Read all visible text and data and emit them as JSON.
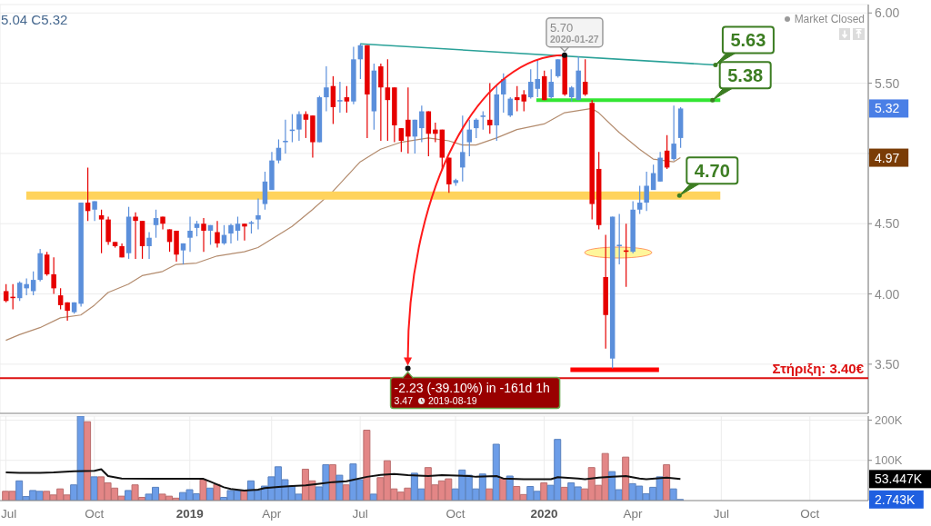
{
  "chart_data": [
    {
      "type": "candlestick",
      "x": [
        "2018-07-02",
        "2018-07-09",
        "2018-07-16",
        "2018-07-23",
        "2018-07-30",
        "2018-08-06",
        "2018-08-13",
        "2018-08-20",
        "2018-08-27",
        "2018-09-03",
        "2018-09-10",
        "2018-09-17",
        "2018-09-24",
        "2018-10-01",
        "2018-10-08",
        "2018-10-15",
        "2018-10-22",
        "2018-10-29",
        "2018-11-05",
        "2018-11-12",
        "2018-11-19",
        "2018-11-26",
        "2018-12-03",
        "2018-12-10",
        "2018-12-17",
        "2018-12-24",
        "2018-12-31",
        "2019-01-07",
        "2019-01-14",
        "2019-01-21",
        "2019-01-28",
        "2019-02-04",
        "2019-02-11",
        "2019-02-18",
        "2019-02-25",
        "2019-03-04",
        "2019-03-11",
        "2019-03-18",
        "2019-03-25",
        "2019-04-01",
        "2019-04-08",
        "2019-04-15",
        "2019-04-22",
        "2019-04-29",
        "2019-05-06",
        "2019-05-13",
        "2019-05-20",
        "2019-05-27",
        "2019-06-03",
        "2019-06-10",
        "2019-06-17",
        "2019-06-24",
        "2019-07-01",
        "2019-07-08",
        "2019-07-15",
        "2019-07-22",
        "2019-07-29",
        "2019-08-05",
        "2019-08-12",
        "2019-08-19",
        "2019-08-26",
        "2019-09-02",
        "2019-09-09",
        "2019-09-16",
        "2019-09-23",
        "2019-09-30",
        "2019-10-07",
        "2019-10-14",
        "2019-10-21",
        "2019-10-28",
        "2019-11-04",
        "2019-11-11",
        "2019-11-18",
        "2019-11-25",
        "2019-12-02",
        "2019-12-09",
        "2019-12-16",
        "2019-12-23",
        "2019-12-30",
        "2020-01-06",
        "2020-01-13",
        "2020-01-20",
        "2020-01-27",
        "2020-02-03",
        "2020-02-10",
        "2020-02-17",
        "2020-02-24",
        "2020-03-02",
        "2020-03-09",
        "2020-03-16",
        "2020-03-23",
        "2020-03-30",
        "2020-04-06",
        "2020-04-13",
        "2020-04-20",
        "2020-04-27",
        "2020-05-04",
        "2020-05-11",
        "2020-05-18",
        "2020-05-25"
      ],
      "ohlc": [
        [
          4.02,
          4.07,
          3.94,
          3.95
        ],
        [
          3.98,
          4.07,
          3.89,
          3.97
        ],
        [
          3.97,
          4.09,
          3.95,
          4.08
        ],
        [
          4.04,
          4.11,
          3.99,
          4.07
        ],
        [
          4.02,
          4.16,
          3.99,
          4.1
        ],
        [
          4.1,
          4.32,
          4.09,
          4.29
        ],
        [
          4.28,
          4.3,
          4.13,
          4.14
        ],
        [
          4.14,
          4.26,
          4.0,
          4.04
        ],
        [
          3.99,
          4.04,
          3.89,
          3.92
        ],
        [
          3.94,
          3.94,
          3.81,
          3.88
        ],
        [
          3.87,
          3.94,
          3.86,
          3.94
        ],
        [
          3.93,
          4.65,
          3.91,
          4.65
        ],
        [
          4.65,
          4.9,
          4.52,
          4.59
        ],
        [
          4.6,
          4.66,
          4.52,
          4.66
        ],
        [
          4.56,
          4.6,
          4.29,
          4.53
        ],
        [
          4.53,
          4.55,
          4.35,
          4.37
        ],
        [
          4.37,
          4.37,
          4.33,
          4.34
        ],
        [
          4.34,
          4.36,
          4.26,
          4.26
        ],
        [
          4.29,
          4.62,
          4.25,
          4.55
        ],
        [
          4.55,
          4.58,
          4.25,
          4.52
        ],
        [
          4.52,
          4.52,
          4.25,
          4.34
        ],
        [
          4.34,
          4.44,
          4.25,
          4.4
        ],
        [
          4.49,
          4.6,
          4.4,
          4.54
        ],
        [
          4.55,
          4.55,
          4.46,
          4.5
        ],
        [
          4.46,
          4.46,
          4.3,
          4.37
        ],
        [
          4.45,
          4.45,
          4.23,
          4.28
        ],
        [
          4.31,
          4.36,
          4.21,
          4.36
        ],
        [
          4.4,
          4.55,
          4.3,
          4.45
        ],
        [
          4.47,
          4.52,
          4.41,
          4.5
        ],
        [
          4.5,
          4.54,
          4.3,
          4.45
        ],
        [
          4.45,
          4.49,
          4.35,
          4.49
        ],
        [
          4.44,
          4.52,
          4.33,
          4.36
        ],
        [
          4.36,
          4.49,
          4.35,
          4.42
        ],
        [
          4.43,
          4.5,
          4.36,
          4.49
        ],
        [
          4.45,
          4.55,
          4.38,
          4.5
        ],
        [
          4.5,
          4.5,
          4.38,
          4.48
        ],
        [
          4.5,
          4.52,
          4.43,
          4.51
        ],
        [
          4.53,
          4.68,
          4.46,
          4.56
        ],
        [
          4.64,
          4.87,
          4.6,
          4.8
        ],
        [
          4.74,
          5.01,
          4.74,
          4.95
        ],
        [
          4.95,
          5.1,
          4.93,
          5.04
        ],
        [
          5.08,
          5.24,
          5.0,
          5.09
        ],
        [
          5.16,
          5.28,
          5.08,
          5.17
        ],
        [
          5.17,
          5.3,
          5.09,
          5.28
        ],
        [
          5.28,
          5.3,
          5.11,
          5.24
        ],
        [
          5.27,
          5.27,
          4.97,
          5.08
        ],
        [
          5.08,
          5.41,
          5.08,
          5.4
        ],
        [
          5.4,
          5.62,
          5.3,
          5.47
        ],
        [
          5.48,
          5.55,
          5.21,
          5.33
        ],
        [
          5.37,
          5.51,
          5.29,
          5.38
        ],
        [
          5.4,
          5.48,
          5.29,
          5.37
        ],
        [
          5.37,
          5.76,
          5.35,
          5.67
        ],
        [
          5.67,
          5.78,
          5.53,
          5.77
        ],
        [
          5.77,
          5.77,
          5.11,
          5.42
        ],
        [
          5.3,
          5.64,
          5.17,
          5.59
        ],
        [
          5.62,
          5.64,
          5.09,
          5.47
        ],
        [
          5.47,
          5.67,
          5.09,
          5.38
        ],
        [
          5.47,
          5.47,
          5.08,
          5.2
        ],
        [
          5.18,
          5.18,
          5.01,
          5.09
        ],
        [
          5.24,
          5.47,
          5.0,
          5.12
        ],
        [
          5.12,
          5.24,
          5.0,
          5.24
        ],
        [
          5.18,
          5.34,
          5.08,
          5.3
        ],
        [
          5.3,
          5.3,
          4.98,
          5.14
        ],
        [
          5.17,
          5.22,
          5.08,
          5.14
        ],
        [
          5.17,
          5.17,
          4.88,
          4.97
        ],
        [
          4.97,
          4.97,
          4.72,
          4.78
        ],
        [
          4.79,
          4.82,
          4.77,
          4.81
        ],
        [
          4.9,
          5.27,
          4.8,
          5.01
        ],
        [
          5.08,
          5.24,
          4.98,
          5.17
        ],
        [
          5.18,
          5.25,
          5.11,
          5.24
        ],
        [
          5.26,
          5.3,
          5.17,
          5.27
        ],
        [
          5.24,
          5.5,
          5.14,
          5.2
        ],
        [
          5.2,
          5.48,
          5.09,
          5.42
        ],
        [
          5.42,
          5.57,
          5.29,
          5.53
        ],
        [
          5.27,
          5.4,
          5.26,
          5.39
        ],
        [
          5.4,
          5.48,
          5.3,
          5.38
        ],
        [
          5.42,
          5.45,
          5.3,
          5.37
        ],
        [
          5.4,
          5.6,
          5.39,
          5.51
        ],
        [
          5.46,
          5.67,
          5.4,
          5.53
        ],
        [
          5.55,
          5.59,
          5.38,
          5.38
        ],
        [
          5.4,
          5.6,
          5.39,
          5.51
        ],
        [
          5.55,
          5.67,
          5.54,
          5.67
        ],
        [
          5.7,
          5.7,
          5.41,
          5.42
        ],
        [
          5.4,
          5.48,
          5.37,
          5.47
        ],
        [
          5.38,
          5.69,
          5.38,
          5.59
        ],
        [
          5.51,
          5.67,
          5.41,
          5.42
        ],
        [
          5.36,
          5.38,
          4.53,
          4.64
        ],
        [
          4.89,
          5.01,
          4.46,
          4.49
        ],
        [
          4.12,
          4.42,
          3.61,
          3.85
        ],
        [
          3.54,
          4.55,
          3.47,
          4.55
        ],
        [
          4.34,
          4.57,
          4.21,
          4.35
        ],
        [
          4.31,
          4.5,
          4.05,
          4.3
        ],
        [
          4.3,
          4.66,
          4.29,
          4.6
        ],
        [
          4.6,
          4.77,
          4.57,
          4.65
        ],
        [
          4.65,
          4.87,
          4.59,
          4.77
        ],
        [
          4.74,
          4.92,
          4.74,
          4.86
        ],
        [
          4.8,
          5.01,
          4.8,
          4.97
        ],
        [
          5.02,
          5.13,
          4.89,
          4.9
        ],
        [
          4.96,
          5.34,
          4.95,
          5.07
        ],
        [
          5.11,
          5.33,
          5.04,
          5.32
        ]
      ],
      "colors": [
        "#e60000",
        "#e60000",
        "#5b8fdb",
        "#5b8fdb",
        "#5b8fdb",
        "#5b8fdb",
        "#e60000",
        "#e60000",
        "#e60000",
        "#e60000",
        "#5b8fdb",
        "#5b8fdb",
        "#e60000",
        "#5b8fdb",
        "#e60000",
        "#e60000",
        "#e60000",
        "#e60000",
        "#5b8fdb",
        "#e60000",
        "#e60000",
        "#5b8fdb",
        "#5b8fdb",
        "#e60000",
        "#e60000",
        "#e60000",
        "#5b8fdb",
        "#5b8fdb",
        "#5b8fdb",
        "#e60000",
        "#5b8fdb",
        "#e60000",
        "#5b8fdb",
        "#5b8fdb",
        "#5b8fdb",
        "#e60000",
        "#5b8fdb",
        "#5b8fdb",
        "#5b8fdb",
        "#5b8fdb",
        "#5b8fdb",
        "#5b8fdb",
        "#5b8fdb",
        "#5b8fdb",
        "#e60000",
        "#e60000",
        "#5b8fdb",
        "#5b8fdb",
        "#e60000",
        "#5b8fdb",
        "#e60000",
        "#5b8fdb",
        "#5b8fdb",
        "#e60000",
        "#5b8fdb",
        "#e60000",
        "#e60000",
        "#e60000",
        "#e60000",
        "#e60000",
        "#5b8fdb",
        "#5b8fdb",
        "#e60000",
        "#e60000",
        "#e60000",
        "#e60000",
        "#5b8fdb",
        "#5b8fdb",
        "#5b8fdb",
        "#5b8fdb",
        "#5b8fdb",
        "#e60000",
        "#5b8fdb",
        "#5b8fdb",
        "#5b8fdb",
        "#e60000",
        "#e60000",
        "#5b8fdb",
        "#5b8fdb",
        "#e60000",
        "#5b8fdb",
        "#5b8fdb",
        "#e60000",
        "#5b8fdb",
        "#5b8fdb",
        "#e60000",
        "#e60000",
        "#e60000",
        "#e60000",
        "#5b8fdb",
        "#5b8fdb",
        "#e60000",
        "#5b8fdb",
        "#5b8fdb",
        "#5b8fdb",
        "#5b8fdb",
        "#5b8fdb",
        "#e60000",
        "#5b8fdb",
        "#5b8fdb"
      ],
      "series": [
        {
          "type": "line",
          "x": [
            "2018-07-02",
            "2018-07-16",
            "2018-08-06",
            "2018-08-27",
            "2018-09-17",
            "2018-10-01",
            "2018-10-15",
            "2018-11-05",
            "2018-11-19",
            "2018-12-10",
            "2018-12-24",
            "2019-01-14",
            "2019-02-04",
            "2019-03-04",
            "2019-03-18",
            "2019-04-01",
            "2019-04-22",
            "2019-05-13",
            "2019-06-03",
            "2019-07-01",
            "2019-07-22",
            "2019-08-12",
            "2019-09-09",
            "2019-09-30",
            "2019-10-14",
            "2019-10-28",
            "2019-11-18",
            "2019-12-09",
            "2020-01-06",
            "2020-01-27",
            "2020-02-24",
            "2020-03-02",
            "2020-03-23",
            "2020-04-13",
            "2020-04-27",
            "2020-05-18",
            "2020-05-25"
          ],
          "values": [
            3.67,
            3.71,
            3.76,
            3.83,
            3.85,
            3.92,
            4.01,
            4.07,
            4.13,
            4.16,
            4.21,
            4.22,
            4.27,
            4.3,
            4.33,
            4.39,
            4.48,
            4.6,
            4.73,
            4.94,
            5.03,
            5.08,
            5.11,
            5.09,
            5.06,
            5.06,
            5.11,
            5.17,
            5.21,
            5.29,
            5.32,
            5.29,
            5.15,
            5.03,
            4.96,
            4.94,
            4.97
          ],
          "color": "#b38b6d"
        },
        {
          "type": "line",
          "x": [
            "2019-07-01",
            "2020-06-30"
          ],
          "values": [
            5.78,
            5.63
          ],
          "color": "#2aa198"
        },
        {
          "type": "line",
          "x": [
            "2019-12-29",
            "2020-07-05"
          ],
          "values": [
            5.38,
            5.38
          ],
          "color": "#33e633"
        },
        {
          "type": "line",
          "x": [
            "2018-07-23",
            "2020-07-05"
          ],
          "values": [
            4.7,
            4.7
          ],
          "color": "#ffd35c"
        },
        {
          "type": "line",
          "x": [
            "2020-02-02",
            "2020-05-03"
          ],
          "values": [
            3.46,
            3.46
          ],
          "color": "#ff0000"
        }
      ],
      "xlim": [
        "2018-06-26",
        "2020-12-04"
      ],
      "xticks": [
        {
          "value": "2018-07-02",
          "label": null
        },
        {
          "value": "2018-10-01",
          "label": null
        },
        {
          "value": "2019-01-07",
          "label": null
        },
        {
          "value": "2019-04-01",
          "label": null
        },
        {
          "value": "2019-07-01",
          "label": null
        },
        {
          "value": "2019-10-07",
          "label": null
        },
        {
          "value": "2020-01-06",
          "label": null
        },
        {
          "value": "2020-04-06",
          "label": null
        },
        {
          "value": "2020-07-06",
          "label": null
        },
        {
          "value": "2020-10-05",
          "label": null
        }
      ],
      "ylim": [
        3.15,
        6.06
      ],
      "yticks": [
        {
          "value": 3.5,
          "label": "3.50"
        },
        {
          "value": 4,
          "label": "4.00"
        },
        {
          "value": 4.5,
          "label": "4.50"
        },
        {
          "value": 5,
          "label": null
        },
        {
          "value": 5.5,
          "label": "5.50"
        },
        {
          "value": 6,
          "label": "6.00"
        }
      ],
      "grid": true,
      "tick_labels": "y",
      "ref_lines": [
        {
          "axis": "y",
          "value": 3.4,
          "label": "Στήριξη: 3.40€",
          "color": "#dd1111"
        }
      ],
      "annotations": [
        "5.04 C5.32",
        "Market Closed",
        {
          "text": "5.70\n2020-01-27",
          "x": "2020-01-27",
          "y": 5.7
        },
        {
          "text": "5.63",
          "x": "2020-06-30",
          "y": 5.63
        },
        {
          "text": "5.38",
          "x": "2020-06-27",
          "y": 5.38
        },
        {
          "text": "4.70",
          "x": "2020-05-24",
          "y": 4.7
        },
        {
          "text": "-2.23 (-39.10%) in -161d 1h\n3.47 2019-08-19",
          "x": "2019-08-19",
          "y": 3.47
        },
        {
          "text": "5.32",
          "y": 5.32
        },
        {
          "text": "4.97",
          "y": 4.97
        }
      ]
    },
    {
      "type": "bar",
      "x": [
        "2018-07-02",
        "2018-07-09",
        "2018-07-16",
        "2018-07-23",
        "2018-07-30",
        "2018-08-06",
        "2018-08-13",
        "2018-08-20",
        "2018-08-27",
        "2018-09-03",
        "2018-09-10",
        "2018-09-17",
        "2018-09-24",
        "2018-10-01",
        "2018-10-08",
        "2018-10-15",
        "2018-10-22",
        "2018-10-29",
        "2018-11-05",
        "2018-11-12",
        "2018-11-19",
        "2018-11-26",
        "2018-12-03",
        "2018-12-10",
        "2018-12-17",
        "2018-12-24",
        "2018-12-31",
        "2019-01-07",
        "2019-01-14",
        "2019-01-21",
        "2019-01-28",
        "2019-02-04",
        "2019-02-11",
        "2019-02-18",
        "2019-02-25",
        "2019-03-04",
        "2019-03-11",
        "2019-03-18",
        "2019-03-25",
        "2019-04-01",
        "2019-04-08",
        "2019-04-15",
        "2019-04-22",
        "2019-04-29",
        "2019-05-06",
        "2019-05-13",
        "2019-05-20",
        "2019-05-27",
        "2019-06-03",
        "2019-06-10",
        "2019-06-17",
        "2019-06-24",
        "2019-07-01",
        "2019-07-08",
        "2019-07-15",
        "2019-07-22",
        "2019-07-29",
        "2019-08-05",
        "2019-08-12",
        "2019-08-19",
        "2019-08-26",
        "2019-09-02",
        "2019-09-09",
        "2019-09-16",
        "2019-09-23",
        "2019-09-30",
        "2019-10-07",
        "2019-10-14",
        "2019-10-21",
        "2019-10-28",
        "2019-11-04",
        "2019-11-11",
        "2019-11-18",
        "2019-11-25",
        "2019-12-02",
        "2019-12-09",
        "2019-12-16",
        "2019-12-23",
        "2019-12-30",
        "2020-01-06",
        "2020-01-13",
        "2020-01-20",
        "2020-01-27",
        "2020-02-03",
        "2020-02-10",
        "2020-02-17",
        "2020-02-24",
        "2020-03-02",
        "2020-03-09",
        "2020-03-16",
        "2020-03-23",
        "2020-03-30",
        "2020-04-06",
        "2020-04-13",
        "2020-04-20",
        "2020-04-27",
        "2020-05-04",
        "2020-05-11",
        "2020-05-18",
        "2020-05-25"
      ],
      "series": [
        {
          "type": "bar",
          "values": [
            23000,
            23000,
            49000,
            10000,
            25000,
            23000,
            23000,
            14000,
            29000,
            14000,
            39000,
            210000,
            196000,
            59000,
            59000,
            44000,
            31000,
            11000,
            25000,
            39000,
            8000,
            16000,
            33000,
            16000,
            11000,
            6000,
            20000,
            27000,
            17000,
            52000,
            31000,
            40000,
            8000,
            25000,
            25000,
            25000,
            49000,
            25000,
            36000,
            59000,
            84000,
            52000,
            36000,
            16000,
            78000,
            49000,
            34000,
            89000,
            89000,
            63000,
            39000,
            91000,
            52000,
            175000,
            16000,
            57000,
            99000,
            29000,
            21000,
            31000,
            68000,
            29000,
            82000,
            39000,
            49000,
            54000,
            29000,
            76000,
            63000,
            29000,
            66000,
            29000,
            140000,
            54000,
            61000,
            35000,
            15000,
            35000,
            23000,
            44000,
            38000,
            152000,
            33000,
            44000,
            34000,
            29000,
            82000,
            38000,
            117000,
            72000,
            27000,
            108000,
            42000,
            36000,
            17000,
            33000,
            59000,
            89000,
            29000,
            2743
          ],
          "colors": [
            "#e38686",
            "#e38686",
            "#6c9de8",
            "#6c9de8",
            "#6c9de8",
            "#6c9de8",
            "#e38686",
            "#e38686",
            "#e38686",
            "#e38686",
            "#6c9de8",
            "#6c9de8",
            "#e38686",
            "#6c9de8",
            "#e38686",
            "#e38686",
            "#e38686",
            "#e38686",
            "#6c9de8",
            "#e38686",
            "#e38686",
            "#6c9de8",
            "#6c9de8",
            "#e38686",
            "#e38686",
            "#e38686",
            "#6c9de8",
            "#6c9de8",
            "#6c9de8",
            "#e38686",
            "#6c9de8",
            "#e38686",
            "#6c9de8",
            "#6c9de8",
            "#6c9de8",
            "#e38686",
            "#6c9de8",
            "#6c9de8",
            "#6c9de8",
            "#6c9de8",
            "#6c9de8",
            "#6c9de8",
            "#6c9de8",
            "#6c9de8",
            "#e38686",
            "#e38686",
            "#6c9de8",
            "#6c9de8",
            "#e38686",
            "#6c9de8",
            "#e38686",
            "#6c9de8",
            "#6c9de8",
            "#e38686",
            "#6c9de8",
            "#e38686",
            "#e38686",
            "#e38686",
            "#e38686",
            "#e38686",
            "#6c9de8",
            "#6c9de8",
            "#e38686",
            "#e38686",
            "#e38686",
            "#e38686",
            "#6c9de8",
            "#6c9de8",
            "#6c9de8",
            "#6c9de8",
            "#6c9de8",
            "#e38686",
            "#6c9de8",
            "#e38686",
            "#6c9de8",
            "#e38686",
            "#e38686",
            "#6c9de8",
            "#6c9de8",
            "#e38686",
            "#6c9de8",
            "#6c9de8",
            "#e38686",
            "#6c9de8",
            "#6c9de8",
            "#e38686",
            "#e38686",
            "#e38686",
            "#e38686",
            "#6c9de8",
            "#6c9de8",
            "#e38686",
            "#6c9de8",
            "#6c9de8",
            "#6c9de8",
            "#6c9de8",
            "#6c9de8",
            "#e38686",
            "#6c9de8",
            "#6c9de8"
          ]
        },
        {
          "type": "line",
          "x": [
            "2018-07-02",
            "2018-07-16",
            "2018-08-06",
            "2018-08-20",
            "2018-09-10",
            "2018-10-01",
            "2018-10-08",
            "2018-10-15",
            "2018-10-29",
            "2018-12-03",
            "2019-01-21",
            "2019-01-28",
            "2019-02-11",
            "2019-02-18",
            "2019-03-04",
            "2019-03-18",
            "2019-03-25",
            "2019-04-08",
            "2019-04-22",
            "2019-05-06",
            "2019-05-20",
            "2019-06-03",
            "2019-06-17",
            "2019-07-08",
            "2019-07-22",
            "2019-08-05",
            "2019-08-19",
            "2019-09-09",
            "2019-09-23",
            "2019-10-21",
            "2019-10-28",
            "2019-11-18",
            "2019-11-25",
            "2019-12-16",
            "2020-01-13",
            "2020-01-20",
            "2020-02-10",
            "2020-02-17",
            "2020-03-02",
            "2020-03-16",
            "2020-03-30",
            "2020-04-13",
            "2020-04-20",
            "2020-05-11",
            "2020-05-25"
          ],
          "values": [
            70000,
            69000,
            69000,
            70000,
            73000,
            74000,
            78000,
            61000,
            55000,
            54000,
            54000,
            47000,
            33000,
            29000,
            25000,
            27000,
            31000,
            34000,
            36000,
            38000,
            42000,
            46000,
            48000,
            59000,
            64000,
            66000,
            63000,
            61000,
            63000,
            61000,
            59000,
            61000,
            55000,
            53000,
            53000,
            58000,
            55000,
            53000,
            57000,
            59000,
            61000,
            55000,
            53000,
            57000,
            53447
          ],
          "color": "#111111"
        }
      ],
      "xlim": [
        "2018-06-26",
        "2020-12-04"
      ],
      "xticks": [
        {
          "value": "2018-07-02",
          "label": "Jul"
        },
        {
          "value": "2018-10-01",
          "label": "Oct"
        },
        {
          "value": "2019-01-07",
          "label": "2019"
        },
        {
          "value": "2019-04-01",
          "label": "Apr"
        },
        {
          "value": "2019-07-01",
          "label": "Jul"
        },
        {
          "value": "2019-10-07",
          "label": "Oct"
        },
        {
          "value": "2020-01-06",
          "label": "2020"
        },
        {
          "value": "2020-04-06",
          "label": "Apr"
        },
        {
          "value": "2020-07-06",
          "label": "Jul"
        },
        {
          "value": "2020-10-05",
          "label": "Oct"
        }
      ],
      "ylim": [
        0,
        210000
      ],
      "yticks": [
        {
          "value": 100000,
          "label": "100K"
        },
        {
          "value": 200000,
          "label": "200K"
        }
      ],
      "grid": true,
      "annotations": [
        "53.447K",
        "2.743K"
      ]
    }
  ]
}
